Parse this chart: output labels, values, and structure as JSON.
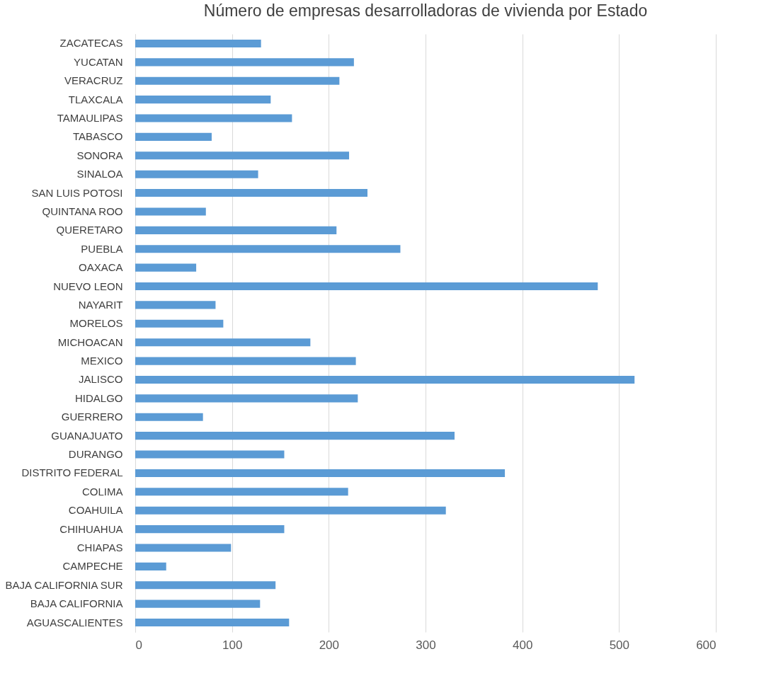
{
  "chart_data": {
    "type": "bar",
    "orientation": "horizontal",
    "title": "Número de empresas desarrolladoras de vivienda por Estado",
    "categories": [
      "ZACATECAS",
      "YUCATAN",
      "VERACRUZ",
      "TLAXCALA",
      "TAMAULIPAS",
      "TABASCO",
      "SONORA",
      "SINALOA",
      "SAN LUIS POTOSI",
      "QUINTANA ROO",
      "QUERETARO",
      "PUEBLA",
      "OAXACA",
      "NUEVO LEON",
      "NAYARIT",
      "MORELOS",
      "MICHOACAN",
      "MEXICO",
      "JALISCO",
      "HIDALGO",
      "GUERRERO",
      "GUANAJUATO",
      "DURANGO",
      "DISTRITO FEDERAL",
      "COLIMA",
      "COAHUILA",
      "CHIHUAHUA",
      "CHIAPAS",
      "CAMPECHE",
      "BAJA CALIFORNIA SUR",
      "BAJA CALIFORNIA",
      "AGUASCALIENTES"
    ],
    "values": [
      130,
      226,
      211,
      140,
      162,
      79,
      221,
      127,
      240,
      73,
      208,
      274,
      63,
      478,
      83,
      91,
      181,
      228,
      516,
      230,
      70,
      330,
      154,
      382,
      220,
      321,
      154,
      99,
      32,
      145,
      129,
      159
    ],
    "color": "#5b9bd5",
    "xlim": [
      0,
      600
    ],
    "xticks": [
      0,
      100,
      200,
      300,
      400,
      500,
      600
    ],
    "grid": "x"
  }
}
